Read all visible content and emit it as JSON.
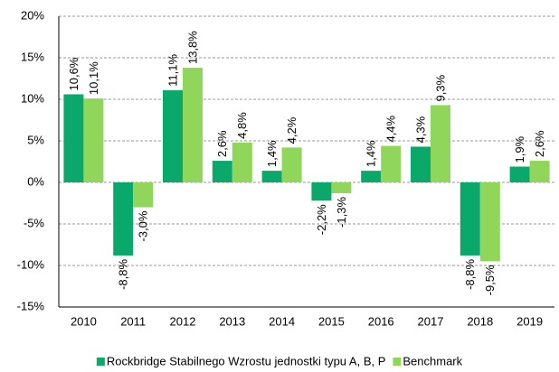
{
  "chart_data": {
    "type": "bar",
    "categories": [
      "2010",
      "2011",
      "2012",
      "2013",
      "2014",
      "2015",
      "2016",
      "2017",
      "2018",
      "2019"
    ],
    "series": [
      {
        "name": "Rockbridge Stabilnego Wzrostu jednostki typu A, B, P",
        "color": "#0aa86a",
        "values": [
          10.6,
          -8.8,
          11.1,
          2.6,
          1.4,
          -2.2,
          1.4,
          4.3,
          -8.8,
          1.9
        ],
        "value_labels": [
          "10,6%",
          "-8,8%",
          "11,1%",
          "2,6%",
          "1,4%",
          "-2,2%",
          "1,4%",
          "4,3%",
          "-8,8%",
          "1,9%"
        ]
      },
      {
        "name": "Benchmark",
        "color": "#8fd65a",
        "values": [
          10.1,
          -3.0,
          13.8,
          4.8,
          4.2,
          -1.3,
          4.4,
          9.3,
          -9.5,
          2.6
        ],
        "value_labels": [
          "10,1%",
          "-3,0%",
          "13,8%",
          "4,8%",
          "4,2%",
          "-1,3%",
          "4,4%",
          "9,3%",
          "-9,5%",
          "2,6%"
        ]
      }
    ],
    "ylim": [
      -15,
      20
    ],
    "yticks": [
      {
        "value": -15,
        "label": "-15%"
      },
      {
        "value": -10,
        "label": "-10%"
      },
      {
        "value": -5,
        "label": "-5%"
      },
      {
        "value": 0,
        "label": "0%"
      },
      {
        "value": 5,
        "label": "5%"
      },
      {
        "value": 10,
        "label": "10%"
      },
      {
        "value": 15,
        "label": "15%"
      },
      {
        "value": 20,
        "label": "20%"
      }
    ],
    "grid": true,
    "legend": "bottom"
  }
}
